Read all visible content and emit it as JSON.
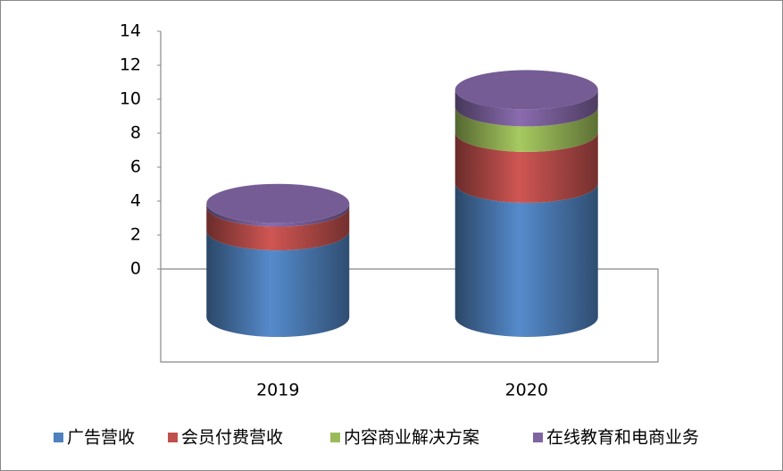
{
  "chart_data": {
    "type": "cylinder-stacked",
    "categories": [
      "2019",
      "2020"
    ],
    "series": [
      {
        "name": "广告营收",
        "color": "#4f81bd",
        "values": [
          5.1,
          7.9
        ]
      },
      {
        "name": "会员付费营收",
        "color": "#c0504d",
        "values": [
          1.4,
          3.0
        ]
      },
      {
        "name": "内容商业解决方案",
        "color": "#9bbb59",
        "values": [
          0,
          1.5
        ]
      },
      {
        "name": "在线教育和电商业务",
        "color": "#8064a2",
        "values": [
          0.2,
          1.0
        ]
      }
    ],
    "ylim": [
      0,
      14
    ],
    "yticks": [
      0,
      2,
      4,
      6,
      8,
      10,
      12,
      14
    ]
  }
}
